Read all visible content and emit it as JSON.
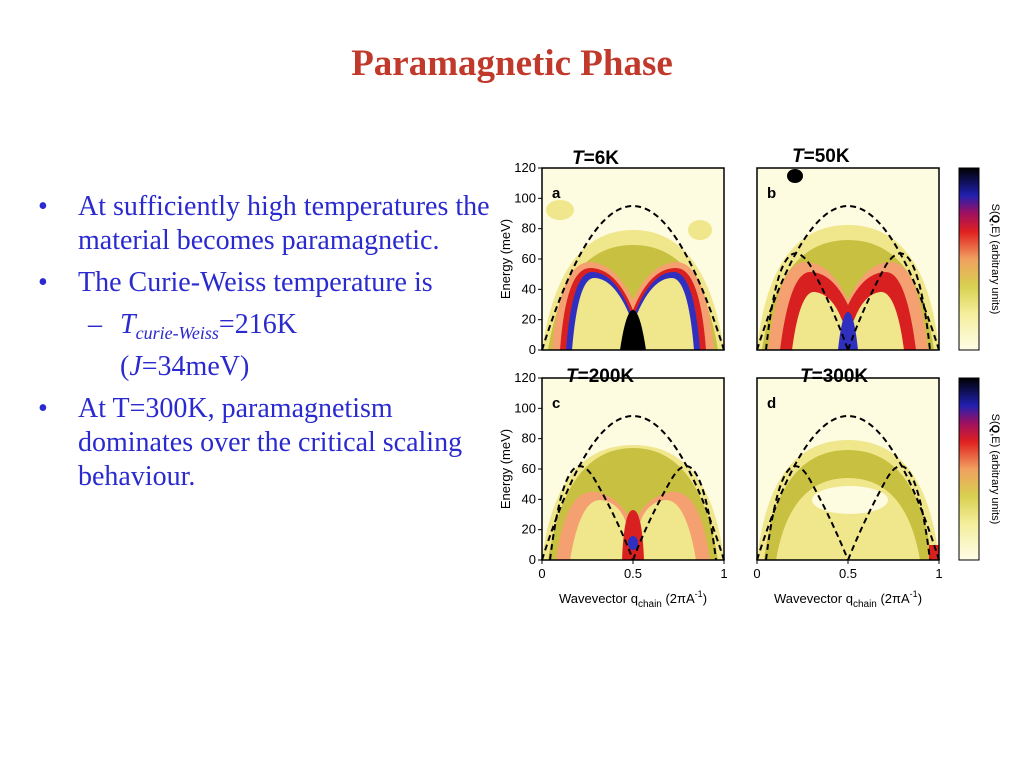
{
  "slide": {
    "title": "Paramagnetic Phase",
    "bullets": [
      {
        "text": "At sufficiently high temperatures the material becomes paramagnetic."
      },
      {
        "text": "The Curie-Weiss temperature is"
      },
      {
        "text": "At T=300K, paramagnetism dominates over the critical scaling behaviour."
      }
    ],
    "sub_bullet": {
      "symbol": "T",
      "subscript": "curie-Weiss",
      "value": "=216K",
      "paren_open": "(",
      "j_symbol": "J",
      "j_value": "=34meV)"
    },
    "bullet_marker": "•",
    "dash_marker": "–"
  },
  "figure": {
    "panels": [
      {
        "id": "a",
        "temp_symbol": "T",
        "temp_value": "=6K"
      },
      {
        "id": "b",
        "temp_symbol": "T",
        "temp_value": "=50K"
      },
      {
        "id": "c",
        "temp_symbol": "T",
        "temp_value": "=200K"
      },
      {
        "id": "d",
        "temp_symbol": "T",
        "temp_value": "=300K"
      }
    ],
    "y_axis_label": "Energy (meV)",
    "y_ticks": [
      "0",
      "20",
      "40",
      "60",
      "80",
      "100",
      "120"
    ],
    "x_ticks": [
      "0",
      "0.5",
      "1"
    ],
    "x_axis_label_main": "Wavevector q",
    "x_axis_label_sub": "chain",
    "x_axis_label_unit": " (2πA",
    "x_axis_label_exp": "-1",
    "x_axis_label_close": ")",
    "colorbar_label_prefix": "S(",
    "colorbar_label_bold": "Q",
    "colorbar_label_suffix": ",E) (arbitrary units)",
    "colors": {
      "title": "#c0392b",
      "text": "#2a2acf",
      "background_fill": "#fbf8c8",
      "low": "#f0e68c",
      "mid": "#c8c040",
      "olive": "#b8b030",
      "orange": "#f4a070",
      "red": "#d82020",
      "blue": "#3030c0",
      "black": "#000000"
    }
  }
}
